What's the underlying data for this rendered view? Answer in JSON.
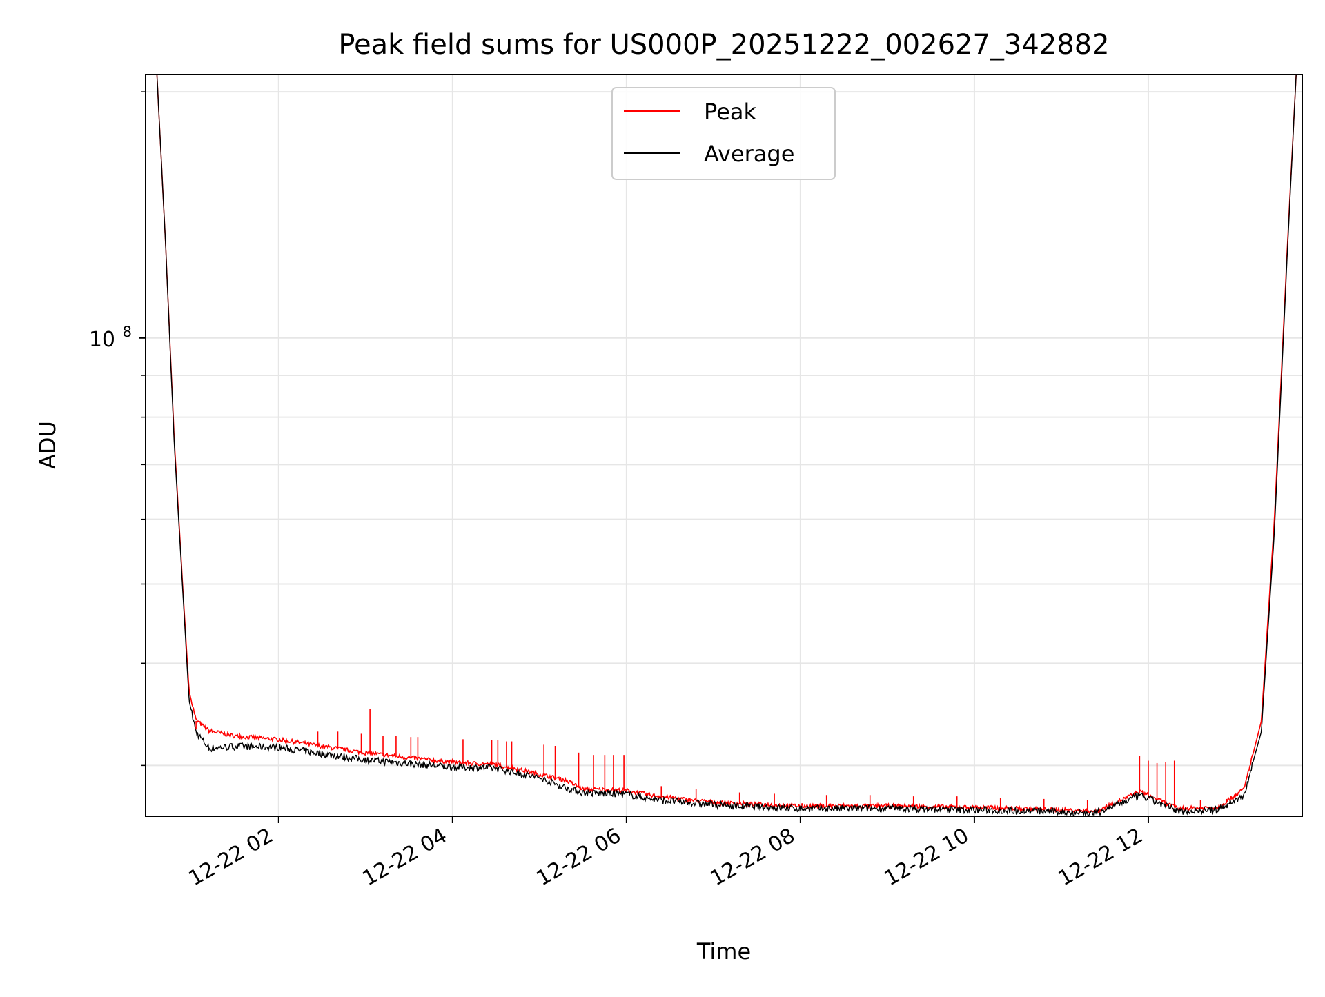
{
  "chart_data": {
    "type": "line",
    "title": "Peak field sums for US000P_20251222_002627_342882",
    "xlabel": "Time",
    "ylabel": "ADU",
    "yscale": "log",
    "xlim": [
      0.47,
      13.77
    ],
    "ylim": [
      26000000,
      210000000
    ],
    "grid": true,
    "legend_location": "top-center",
    "x_ticks": [
      {
        "value": 2,
        "label": "12-22 02"
      },
      {
        "value": 4,
        "label": "12-22 04"
      },
      {
        "value": 6,
        "label": "12-22 06"
      },
      {
        "value": 8,
        "label": "12-22 08"
      },
      {
        "value": 10,
        "label": "12-22 10"
      },
      {
        "value": 12,
        "label": "12-22 12"
      }
    ],
    "y_major_ticks": [
      {
        "value": 100000000,
        "base": "10",
        "exponent": "8"
      }
    ],
    "y_minor_ticks": [
      30000000,
      40000000,
      50000000,
      60000000,
      70000000,
      80000000,
      90000000,
      200000000
    ],
    "series": [
      {
        "name": "Peak",
        "color": "#ff0000",
        "x": [
          0.6,
          0.7,
          0.8,
          0.9,
          0.97,
          1.05,
          1.2,
          1.5,
          2.0,
          3.0,
          4.0,
          4.5,
          5.0,
          5.3,
          5.5,
          6.0,
          6.3,
          6.8,
          7.2,
          8.0,
          9.0,
          10.0,
          10.8,
          11.4,
          11.9,
          12.35,
          12.8,
          13.1,
          13.3,
          13.45,
          13.6,
          13.7
        ],
        "values": [
          210000000,
          130000000,
          75000000,
          49000000,
          37000000,
          34000000,
          33000000,
          32500000,
          32200000,
          31000000,
          30200000,
          30000000,
          29200000,
          28700000,
          28000000,
          27900000,
          27500000,
          27100000,
          26900000,
          26700000,
          26700000,
          26600000,
          26450000,
          26300000,
          27800000,
          26500000,
          26600000,
          28000000,
          34000000,
          60000000,
          130000000,
          210000000
        ]
      },
      {
        "name": "Average",
        "color": "#000000",
        "x": [
          0.6,
          0.7,
          0.8,
          0.9,
          0.97,
          1.05,
          1.2,
          1.5,
          2.0,
          3.0,
          4.0,
          4.5,
          5.0,
          5.3,
          5.5,
          6.0,
          6.3,
          6.8,
          7.2,
          8.0,
          9.0,
          10.0,
          10.8,
          11.4,
          11.9,
          12.35,
          12.8,
          13.1,
          13.3,
          13.45,
          13.6,
          13.7
        ],
        "values": [
          210000000,
          130000000,
          74000000,
          48500000,
          36000000,
          33000000,
          31500000,
          31700000,
          31600000,
          30500000,
          29900000,
          29800000,
          29000000,
          28200000,
          27800000,
          27700000,
          27300000,
          27000000,
          26800000,
          26600000,
          26600000,
          26500000,
          26400000,
          26250000,
          27600000,
          26400000,
          26500000,
          27600000,
          33000000,
          58000000,
          128000000,
          210000000
        ]
      }
    ],
    "spikes": [
      {
        "x": 1.05,
        "value": 33200000
      },
      {
        "x": 1.55,
        "value": 32900000
      },
      {
        "x": 2.45,
        "value": 33000000
      },
      {
        "x": 2.68,
        "value": 33000000
      },
      {
        "x": 2.95,
        "value": 32800000
      },
      {
        "x": 3.05,
        "value": 35200000
      },
      {
        "x": 3.2,
        "value": 32600000
      },
      {
        "x": 3.35,
        "value": 32600000
      },
      {
        "x": 3.52,
        "value": 32500000
      },
      {
        "x": 3.6,
        "value": 32500000
      },
      {
        "x": 4.12,
        "value": 32300000
      },
      {
        "x": 4.45,
        "value": 32200000
      },
      {
        "x": 4.52,
        "value": 32200000
      },
      {
        "x": 4.62,
        "value": 32100000
      },
      {
        "x": 4.68,
        "value": 32100000
      },
      {
        "x": 5.05,
        "value": 31800000
      },
      {
        "x": 5.18,
        "value": 31700000
      },
      {
        "x": 5.45,
        "value": 31100000
      },
      {
        "x": 5.62,
        "value": 30900000
      },
      {
        "x": 5.75,
        "value": 30900000
      },
      {
        "x": 5.85,
        "value": 30900000
      },
      {
        "x": 5.97,
        "value": 30900000
      },
      {
        "x": 6.4,
        "value": 28300000
      },
      {
        "x": 6.8,
        "value": 28100000
      },
      {
        "x": 7.3,
        "value": 27800000
      },
      {
        "x": 7.7,
        "value": 27700000
      },
      {
        "x": 8.3,
        "value": 27600000
      },
      {
        "x": 8.8,
        "value": 27600000
      },
      {
        "x": 9.3,
        "value": 27500000
      },
      {
        "x": 9.8,
        "value": 27500000
      },
      {
        "x": 10.3,
        "value": 27400000
      },
      {
        "x": 10.8,
        "value": 27300000
      },
      {
        "x": 11.3,
        "value": 27200000
      },
      {
        "x": 11.9,
        "value": 30800000
      },
      {
        "x": 12.0,
        "value": 30400000
      },
      {
        "x": 12.1,
        "value": 30200000
      },
      {
        "x": 12.2,
        "value": 30300000
      },
      {
        "x": 12.3,
        "value": 30400000
      },
      {
        "x": 12.6,
        "value": 27200000
      },
      {
        "x": 12.9,
        "value": 27300000
      }
    ]
  }
}
